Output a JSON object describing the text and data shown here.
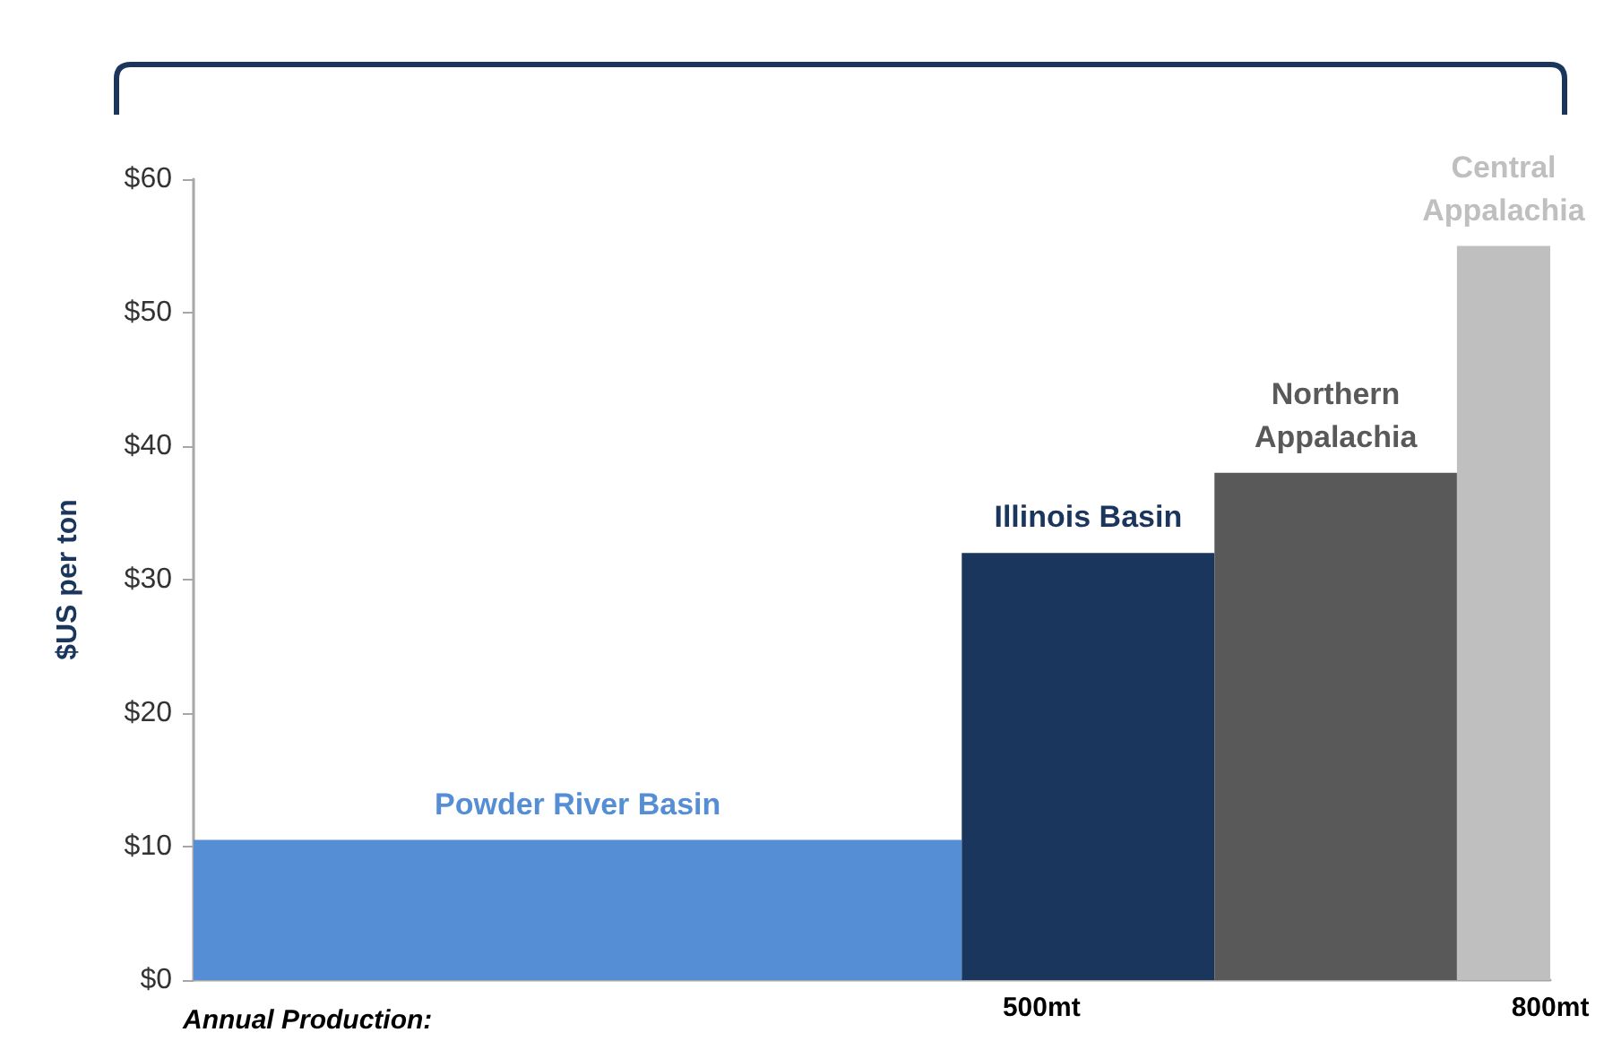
{
  "chart_data": {
    "type": "histogram",
    "bins": [
      0,
      453,
      602,
      745,
      800
    ],
    "values": [
      10.5,
      32,
      38,
      55
    ],
    "colors": [
      "#558ed5",
      "#1b365d",
      "#595959",
      "#bfbfbf"
    ],
    "xlabel": "Annual Production:",
    "ylabel": "$US per ton",
    "xlim": [
      0,
      800
    ],
    "xticks": [
      {
        "value": 500,
        "label": "500mt"
      },
      {
        "value": 800,
        "label": "800mt"
      }
    ],
    "ylim": [
      0,
      60
    ],
    "yticks": [
      {
        "value": 0,
        "label": "$0"
      },
      {
        "value": 10,
        "label": "$10"
      },
      {
        "value": 20,
        "label": "$20"
      },
      {
        "value": 30,
        "label": "$30"
      },
      {
        "value": 40,
        "label": "$40"
      },
      {
        "value": 50,
        "label": "$50"
      },
      {
        "value": 60,
        "label": "$60"
      }
    ],
    "annotations": [
      "Powder River Basin",
      "Illinois Basin",
      "Northern\nAppalachia",
      "Central\nAppalachia"
    ],
    "grid": false
  }
}
